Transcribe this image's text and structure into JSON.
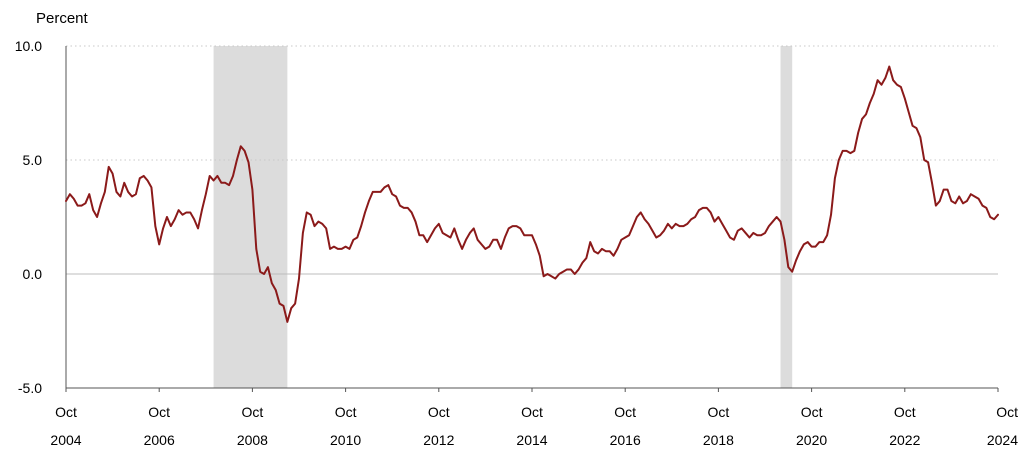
{
  "chart_data": {
    "type": "line",
    "ylabel": "Percent",
    "ylim": [
      -5,
      10
    ],
    "y_ticks": [
      "10.0",
      "5.0",
      "0.0",
      "-5.0"
    ],
    "x_month_label": "Oct",
    "x_year_labels": [
      "2004",
      "2006",
      "2008",
      "2010",
      "2012",
      "2014",
      "2016",
      "2018",
      "2020",
      "2022",
      "2024"
    ],
    "recessions": [
      {
        "start": "2007-12",
        "end": "2009-06"
      },
      {
        "start": "2020-02",
        "end": "2020-04"
      }
    ],
    "colors": {
      "line": "#8b1a1a",
      "recession": "#dcdcdc",
      "grid": "#c8c8c8",
      "axis": "#555555"
    },
    "series": [
      {
        "start": "2004-10",
        "values": [
          3.2,
          3.5,
          3.3,
          3.0,
          3.0,
          3.1,
          3.5,
          2.8,
          2.5,
          3.1,
          3.6,
          4.7,
          4.4,
          3.6,
          3.4,
          4.0,
          3.6,
          3.4,
          3.5,
          4.2,
          4.3,
          4.1,
          3.8,
          2.1,
          1.3,
          2.0,
          2.5,
          2.1,
          2.4,
          2.8,
          2.6,
          2.7,
          2.7,
          2.4,
          2.0,
          2.8,
          3.5,
          4.3,
          4.1,
          4.3,
          4.0,
          4.0,
          3.9,
          4.3,
          5.0,
          5.6,
          5.4,
          4.9,
          3.7,
          1.1,
          0.1,
          0.0,
          0.3,
          -0.4,
          -0.7,
          -1.3,
          -1.4,
          -2.1,
          -1.5,
          -1.3,
          -0.2,
          1.8,
          2.7,
          2.6,
          2.1,
          2.3,
          2.2,
          2.0,
          1.1,
          1.2,
          1.1,
          1.1,
          1.2,
          1.1,
          1.5,
          1.6,
          2.1,
          2.7,
          3.2,
          3.6,
          3.6,
          3.6,
          3.8,
          3.9,
          3.5,
          3.4,
          3.0,
          2.9,
          2.9,
          2.7,
          2.3,
          1.7,
          1.7,
          1.4,
          1.7,
          2.0,
          2.2,
          1.8,
          1.7,
          1.6,
          2.0,
          1.5,
          1.1,
          1.5,
          1.8,
          2.0,
          1.5,
          1.3,
          1.1,
          1.2,
          1.5,
          1.5,
          1.1,
          1.6,
          2.0,
          2.1,
          2.1,
          2.0,
          1.7,
          1.7,
          1.7,
          1.3,
          0.8,
          -0.1,
          0.0,
          -0.1,
          -0.2,
          0.0,
          0.1,
          0.2,
          0.2,
          0.0,
          0.2,
          0.5,
          0.7,
          1.4,
          1.0,
          0.9,
          1.1,
          1.0,
          1.0,
          0.8,
          1.1,
          1.5,
          1.6,
          1.7,
          2.1,
          2.5,
          2.7,
          2.4,
          2.2,
          1.9,
          1.6,
          1.7,
          1.9,
          2.2,
          2.0,
          2.2,
          2.1,
          2.1,
          2.2,
          2.4,
          2.5,
          2.8,
          2.9,
          2.9,
          2.7,
          2.3,
          2.5,
          2.2,
          1.9,
          1.6,
          1.5,
          1.9,
          2.0,
          1.8,
          1.6,
          1.8,
          1.7,
          1.7,
          1.8,
          2.1,
          2.3,
          2.5,
          2.3,
          1.5,
          0.3,
          0.1,
          0.6,
          1.0,
          1.3,
          1.4,
          1.2,
          1.2,
          1.4,
          1.4,
          1.7,
          2.6,
          4.2,
          5.0,
          5.4,
          5.4,
          5.3,
          5.4,
          6.2,
          6.8,
          7.0,
          7.5,
          7.9,
          8.5,
          8.3,
          8.6,
          9.1,
          8.5,
          8.3,
          8.2,
          7.7,
          7.1,
          6.5,
          6.4,
          6.0,
          5.0,
          4.9,
          4.0,
          3.0,
          3.2,
          3.7,
          3.7,
          3.2,
          3.1,
          3.4,
          3.1,
          3.2,
          3.5,
          3.4,
          3.3,
          3.0,
          2.9,
          2.5,
          2.4,
          2.6
        ]
      }
    ]
  }
}
